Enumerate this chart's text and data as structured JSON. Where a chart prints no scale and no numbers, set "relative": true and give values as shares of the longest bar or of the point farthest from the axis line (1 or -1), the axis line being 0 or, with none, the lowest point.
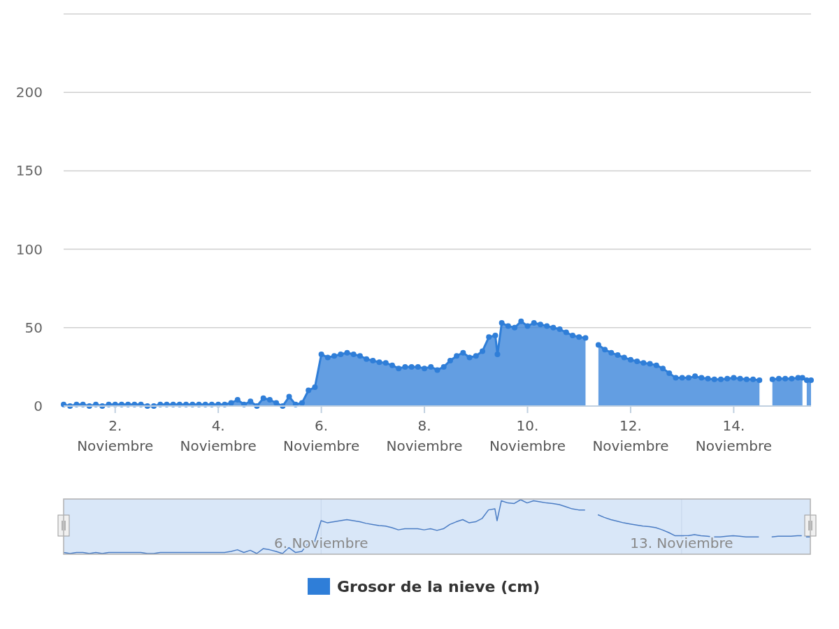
{
  "chart_data": [
    {
      "type": "area",
      "x": [
        "--11-01T00:00",
        "--11-01T03:00",
        "--11-01T06:00",
        "--11-01T09:00",
        "--11-01T12:00",
        "--11-01T15:00",
        "--11-01T18:00",
        "--11-01T21:00",
        "--11-02T00:00",
        "--11-02T03:00",
        "--11-02T06:00",
        "--11-02T09:00",
        "--11-02T12:00",
        "--11-02T15:00",
        "--11-02T18:00",
        "--11-02T21:00",
        "--11-03T00:00",
        "--11-03T03:00",
        "--11-03T06:00",
        "--11-03T09:00",
        "--11-03T12:00",
        "--11-03T15:00",
        "--11-03T18:00",
        "--11-03T21:00",
        "--11-04T00:00",
        "--11-04T03:00",
        "--11-04T06:00",
        "--11-04T09:00",
        "--11-04T12:00",
        "--11-04T15:00",
        "--11-04T18:00",
        "--11-04T21:00",
        "--11-05T00:00",
        "--11-05T03:00",
        "--11-05T06:00",
        "--11-05T09:00",
        "--11-05T12:00",
        "--11-05T15:00",
        "--11-05T18:00",
        "--11-05T21:00",
        "--11-06T00:00",
        "--11-06T03:00",
        "--11-06T06:00",
        "--11-06T09:00",
        "--11-06T12:00",
        "--11-06T15:00",
        "--11-06T18:00",
        "--11-06T21:00",
        "--11-07T00:00",
        "--11-07T03:00",
        "--11-07T06:00",
        "--11-07T09:00",
        "--11-07T12:00",
        "--11-07T15:00",
        "--11-07T18:00",
        "--11-07T21:00",
        "--11-08T00:00",
        "--11-08T03:00",
        "--11-08T06:00",
        "--11-08T09:00",
        "--11-08T12:00",
        "--11-08T15:00",
        "--11-08T18:00",
        "--11-08T21:00",
        "--11-09T00:00",
        "--11-09T03:00",
        "--11-09T06:00",
        "--11-09T09:00",
        "--11-09T10:00",
        "--11-09T12:00",
        "--11-09T15:00",
        "--11-09T18:00",
        "--11-09T21:00",
        "--11-10T00:00",
        "--11-10T03:00",
        "--11-10T06:00",
        "--11-10T09:00",
        "--11-10T12:00",
        "--11-10T15:00",
        "--11-10T18:00",
        "--11-10T21:00",
        "--11-11T00:00",
        "--11-11T03:00",
        "--11-11T06:00",
        "--11-11T09:00",
        "--11-11T12:00",
        "--11-11T15:00",
        "--11-11T18:00",
        "--11-11T21:00",
        "--11-12T00:00",
        "--11-12T03:00",
        "--11-12T06:00",
        "--11-12T09:00",
        "--11-12T12:00",
        "--11-12T15:00",
        "--11-12T18:00",
        "--11-12T21:00",
        "--11-13T00:00",
        "--11-13T03:00",
        "--11-13T06:00",
        "--11-13T09:00",
        "--11-13T12:00",
        "--11-13T15:00",
        "--11-13T18:00",
        "--11-13T21:00",
        "--11-14T00:00",
        "--11-14T03:00",
        "--11-14T06:00",
        "--11-14T09:00",
        "--11-14T12:00",
        "--11-14T15:00",
        "--11-14T18:00",
        "--11-14T21:00",
        "--11-15T00:00",
        "--11-15T03:00",
        "--11-15T06:00",
        "--11-15T08:00",
        "--11-15T09:00",
        "--11-15T10:00",
        "--11-15T12:00"
      ],
      "series": [
        {
          "name": "Grosor de la nieve (cm)",
          "color": "#2f7ed8",
          "values": [
            1,
            0,
            1,
            1,
            0,
            1,
            0,
            1,
            1,
            1,
            1,
            1,
            1,
            0,
            0,
            1,
            1,
            1,
            1,
            1,
            1,
            1,
            1,
            1,
            1,
            1,
            2,
            4,
            1,
            3,
            0,
            5,
            4,
            2,
            0,
            6,
            1,
            2,
            10,
            12,
            33,
            31,
            32,
            33,
            34,
            33,
            32,
            30,
            29,
            28,
            27.5,
            26,
            24,
            25,
            25,
            25,
            24,
            25,
            23,
            25,
            29,
            32,
            34,
            31,
            32,
            35,
            44,
            45,
            33,
            53,
            51,
            50,
            54,
            51,
            53,
            52,
            51,
            50,
            49,
            47,
            45,
            44,
            43.5,
            null,
            39,
            36,
            34,
            32.5,
            31,
            29.5,
            28.5,
            27.5,
            27,
            26,
            24,
            21,
            18,
            18,
            18,
            19,
            18,
            17.5,
            17,
            17,
            17.5,
            18,
            17.5,
            17,
            17,
            16.5,
            null,
            17,
            17.5,
            17.5,
            17.5,
            18,
            18,
            null,
            16.5,
            16.5
          ]
        }
      ],
      "xlim": [
        "--11-01T00:00",
        "--11-15T12:00"
      ],
      "xticks": [
        {
          "value": "--11-02",
          "label": "2. Noviembre"
        },
        {
          "value": "--11-04",
          "label": "4. Noviembre"
        },
        {
          "value": "--11-06",
          "label": "6. Noviembre"
        },
        {
          "value": "--11-08",
          "label": "8. Noviembre"
        },
        {
          "value": "--11-10",
          "label": "10. Noviembre"
        },
        {
          "value": "--11-12",
          "label": "12. Noviembre"
        },
        {
          "value": "--11-14",
          "label": "14. Noviembre"
        }
      ],
      "ylim": [
        0,
        250
      ],
      "yticks": [
        0,
        50,
        100,
        150,
        200,
        {
          "value": 250,
          "label": null
        }
      ],
      "grid": "y",
      "marker": "circle",
      "legend": "bottom"
    },
    {
      "type": "line",
      "relative": true,
      "x": [
        "--11-01T00:00",
        "--11-01T03:00",
        "--11-01T06:00",
        "--11-01T09:00",
        "--11-01T12:00",
        "--11-01T15:00",
        "--11-01T18:00",
        "--11-01T21:00",
        "--11-02T00:00",
        "--11-02T03:00",
        "--11-02T06:00",
        "--11-02T09:00",
        "--11-02T12:00",
        "--11-02T15:00",
        "--11-02T18:00",
        "--11-02T21:00",
        "--11-03T00:00",
        "--11-03T03:00",
        "--11-03T06:00",
        "--11-03T09:00",
        "--11-03T12:00",
        "--11-03T15:00",
        "--11-03T18:00",
        "--11-03T21:00",
        "--11-04T00:00",
        "--11-04T03:00",
        "--11-04T06:00",
        "--11-04T09:00",
        "--11-04T12:00",
        "--11-04T15:00",
        "--11-04T18:00",
        "--11-04T21:00",
        "--11-05T00:00",
        "--11-05T03:00",
        "--11-05T06:00",
        "--11-05T09:00",
        "--11-05T12:00",
        "--11-05T15:00",
        "--11-05T18:00",
        "--11-05T21:00",
        "--11-06T00:00",
        "--11-06T03:00",
        "--11-06T06:00",
        "--11-06T09:00",
        "--11-06T12:00",
        "--11-06T15:00",
        "--11-06T18:00",
        "--11-06T21:00",
        "--11-07T00:00",
        "--11-07T03:00",
        "--11-07T06:00",
        "--11-07T09:00",
        "--11-07T12:00",
        "--11-07T15:00",
        "--11-07T18:00",
        "--11-07T21:00",
        "--11-08T00:00",
        "--11-08T03:00",
        "--11-08T06:00",
        "--11-08T09:00",
        "--11-08T12:00",
        "--11-08T15:00",
        "--11-08T18:00",
        "--11-08T21:00",
        "--11-09T00:00",
        "--11-09T03:00",
        "--11-09T06:00",
        "--11-09T09:00",
        "--11-09T10:00",
        "--11-09T12:00",
        "--11-09T15:00",
        "--11-09T18:00",
        "--11-09T21:00",
        "--11-10T00:00",
        "--11-10T03:00",
        "--11-10T06:00",
        "--11-10T09:00",
        "--11-10T12:00",
        "--11-10T15:00",
        "--11-10T18:00",
        "--11-10T21:00",
        "--11-11T00:00",
        "--11-11T03:00",
        "--11-11T06:00",
        "--11-11T09:00",
        "--11-11T12:00",
        "--11-11T15:00",
        "--11-11T18:00",
        "--11-11T21:00",
        "--11-12T00:00",
        "--11-12T03:00",
        "--11-12T06:00",
        "--11-12T09:00",
        "--11-12T12:00",
        "--11-12T15:00",
        "--11-12T18:00",
        "--11-12T21:00",
        "--11-13T00:00",
        "--11-13T03:00",
        "--11-13T06:00",
        "--11-13T09:00",
        "--11-13T12:00",
        "--11-13T15:00",
        "--11-13T18:00",
        "--11-13T21:00",
        "--11-14T00:00",
        "--11-14T03:00",
        "--11-14T06:00",
        "--11-14T09:00",
        "--11-14T12:00",
        "--11-14T15:00",
        "--11-14T18:00",
        "--11-14T21:00",
        "--11-15T00:00",
        "--11-15T03:00",
        "--11-15T06:00",
        "--11-15T08:00",
        "--11-15T09:00",
        "--11-15T10:00",
        "--11-15T12:00"
      ],
      "series": [
        {
          "color": "#4a7cc4",
          "values": [
            0.02,
            0,
            0.02,
            0.02,
            0,
            0.02,
            0,
            0.02,
            0.02,
            0.02,
            0.02,
            0.02,
            0.02,
            0,
            0,
            0.02,
            0.02,
            0.02,
            0.02,
            0.02,
            0.02,
            0.02,
            0.02,
            0.02,
            0.02,
            0.02,
            0.04,
            0.07,
            0.02,
            0.06,
            0,
            0.09,
            0.07,
            0.04,
            0,
            0.11,
            0.02,
            0.04,
            0.19,
            0.22,
            0.61,
            0.57,
            0.59,
            0.61,
            0.63,
            0.61,
            0.59,
            0.56,
            0.54,
            0.52,
            0.51,
            0.48,
            0.44,
            0.46,
            0.46,
            0.46,
            0.44,
            0.46,
            0.43,
            0.46,
            0.54,
            0.59,
            0.63,
            0.57,
            0.59,
            0.65,
            0.81,
            0.83,
            0.61,
            0.98,
            0.94,
            0.93,
            1,
            0.94,
            0.98,
            0.96,
            0.94,
            0.93,
            0.91,
            0.87,
            0.83,
            0.81,
            0.81,
            null,
            0.72,
            0.67,
            0.63,
            0.6,
            0.57,
            0.55,
            0.53,
            0.51,
            0.5,
            0.48,
            0.44,
            0.39,
            0.33,
            0.33,
            0.33,
            0.35,
            0.33,
            0.32,
            0.31,
            0.31,
            0.32,
            0.33,
            0.32,
            0.31,
            0.31,
            0.31,
            null,
            0.31,
            0.32,
            0.32,
            0.32,
            0.33,
            0.33,
            null,
            0.31,
            0.31
          ]
        }
      ],
      "xlim": [
        "--11-01T00:00",
        "--11-15T12:00"
      ],
      "xticks": [
        {
          "value": "--11-06",
          "label": "6. Noviembre"
        },
        {
          "value": "--11-13",
          "label": "13. Noviembre"
        }
      ]
    }
  ]
}
